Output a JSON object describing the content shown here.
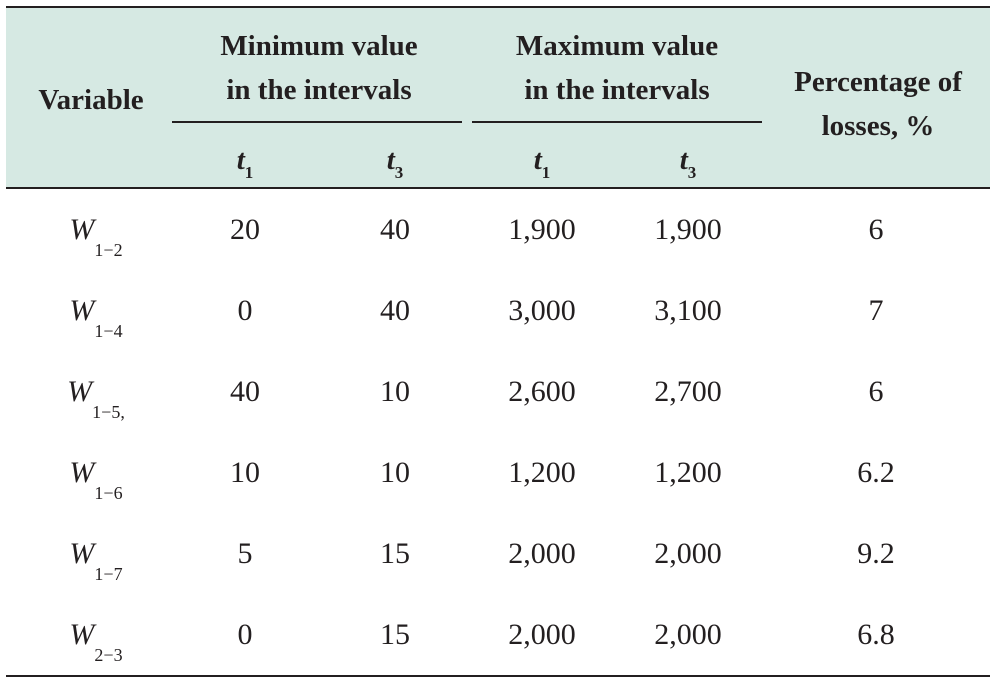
{
  "header": {
    "variable": "Variable",
    "min_group": [
      "Minimum value",
      "in the intervals"
    ],
    "max_group": [
      "Maximum value",
      "in the intervals"
    ],
    "percent": [
      "Percentage of",
      "losses, %"
    ],
    "sub_min": [
      {
        "base": "t",
        "sub": "1"
      },
      {
        "base": "t",
        "sub": "3"
      }
    ],
    "sub_max": [
      {
        "base": "t",
        "sub": "1"
      },
      {
        "base": "t",
        "sub": "3"
      }
    ]
  },
  "rows": [
    {
      "var": "W",
      "var_sub": "1−2",
      "min_t1": "20",
      "min_t3": "40",
      "max_t1": "1,900",
      "max_t3": "1,900",
      "pct": "6"
    },
    {
      "var": "W",
      "var_sub": "1−4",
      "min_t1": "0",
      "min_t3": "40",
      "max_t1": "3,000",
      "max_t3": "3,100",
      "pct": "7"
    },
    {
      "var": "W",
      "var_sub": "1−5,",
      "min_t1": "40",
      "min_t3": "10",
      "max_t1": "2,600",
      "max_t3": "2,700",
      "pct": "6"
    },
    {
      "var": "W",
      "var_sub": "1−6",
      "min_t1": "10",
      "min_t3": "10",
      "max_t1": "1,200",
      "max_t3": "1,200",
      "pct": "6.2"
    },
    {
      "var": "W",
      "var_sub": "1−7",
      "min_t1": "5",
      "min_t3": "15",
      "max_t1": "2,000",
      "max_t3": "2,000",
      "pct": "9.2"
    },
    {
      "var": "W",
      "var_sub": "2−3",
      "min_t1": "0",
      "min_t3": "15",
      "max_t1": "2,000",
      "max_t3": "2,000",
      "pct": "6.8"
    }
  ],
  "colors": {
    "header_bg": "#d6e9e3",
    "text": "#231f20",
    "rule": "#231f20"
  }
}
